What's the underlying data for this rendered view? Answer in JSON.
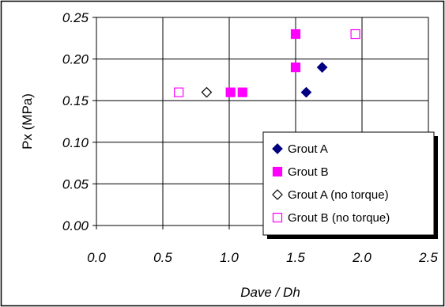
{
  "chart_data": {
    "type": "scatter",
    "title": "",
    "xlabel": "Dave / Dh",
    "ylabel": "Px (MPa)",
    "xlim": [
      0.0,
      2.5
    ],
    "ylim": [
      0.0,
      0.25
    ],
    "x_ticks": [
      "0.0",
      "0.5",
      "1.0",
      "1.5",
      "2.0",
      "2.5"
    ],
    "y_ticks": [
      "0.00",
      "0.05",
      "0.10",
      "0.15",
      "0.20",
      "0.25"
    ],
    "grid": true,
    "legend_position": "bottom-right",
    "series": [
      {
        "name": "Grout A",
        "marker": "diamond",
        "filled": true,
        "color": "#000080",
        "points": [
          [
            1.58,
            0.16
          ],
          [
            1.7,
            0.19
          ]
        ]
      },
      {
        "name": "Grout B",
        "marker": "square",
        "filled": true,
        "color": "#FF00FF",
        "points": [
          [
            1.01,
            0.16
          ],
          [
            1.1,
            0.16
          ],
          [
            1.5,
            0.19
          ],
          [
            1.5,
            0.23
          ]
        ]
      },
      {
        "name": "Grout A (no torque)",
        "marker": "diamond",
        "filled": false,
        "color": "#000000",
        "points": [
          [
            0.83,
            0.16
          ]
        ]
      },
      {
        "name": "Grout B (no torque)",
        "marker": "square",
        "filled": false,
        "color": "#FF00FF",
        "points": [
          [
            0.62,
            0.16
          ],
          [
            1.95,
            0.23
          ]
        ]
      }
    ]
  }
}
